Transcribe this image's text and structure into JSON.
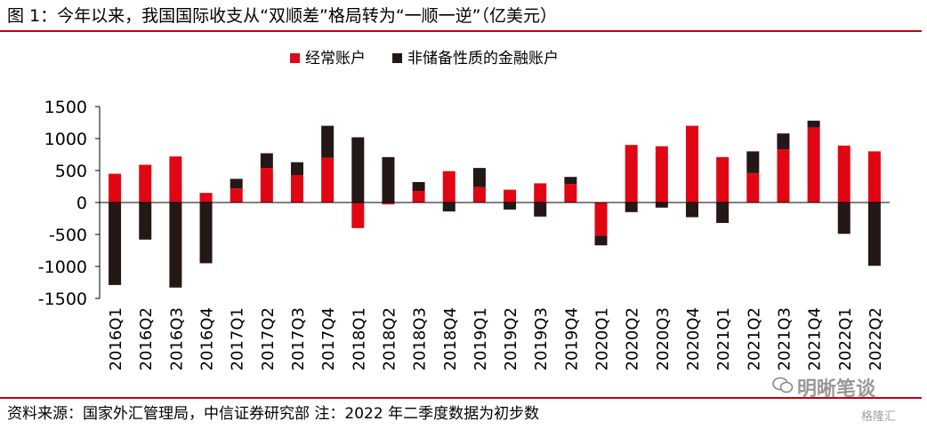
{
  "title": "图 1：今年以来，我国国际收支从“双顺差”格局转为“一顺一逆”（亿美元）",
  "source": "资料来源：国家外汇管理局，中信证券研究部  注：2022 年二季度数据为初步数",
  "watermark": "明晰笔谈",
  "watermark2": "格隆汇",
  "colors": {
    "rule": "#c0000b",
    "current": "#e10613",
    "financial": "#231815"
  },
  "chart_data": {
    "type": "bar",
    "stacked": true,
    "categories": [
      "2016Q1",
      "2016Q2",
      "2016Q3",
      "2016Q4",
      "2017Q1",
      "2017Q2",
      "2017Q3",
      "2017Q4",
      "2018Q1",
      "2018Q2",
      "2018Q3",
      "2018Q4",
      "2019Q1",
      "2019Q2",
      "2019Q3",
      "2019Q4",
      "2020Q1",
      "2020Q2",
      "2020Q3",
      "2020Q4",
      "2021Q1",
      "2021Q2",
      "2021Q3",
      "2021Q4",
      "2022Q1",
      "2022Q2"
    ],
    "series": [
      {
        "name": "经常账户",
        "color": "#e10613",
        "values": [
          450,
          590,
          720,
          150,
          220,
          540,
          430,
          700,
          -400,
          -30,
          180,
          490,
          240,
          200,
          300,
          290,
          -520,
          900,
          880,
          1200,
          710,
          460,
          830,
          1170,
          890,
          800
        ]
      },
      {
        "name": "非储备性质的金融账户",
        "color": "#231815",
        "values": [
          -1290,
          -580,
          -1330,
          -950,
          150,
          230,
          200,
          500,
          1020,
          710,
          140,
          -140,
          300,
          -110,
          -220,
          110,
          -150,
          -150,
          -80,
          -230,
          -320,
          340,
          250,
          110,
          -490,
          -990
        ]
      }
    ],
    "yticks": [
      1500,
      1000,
      500,
      0,
      -500,
      -1000,
      -1500
    ],
    "ylim": [
      -1500,
      1500
    ],
    "legend_position": "top-center",
    "grid": false
  }
}
